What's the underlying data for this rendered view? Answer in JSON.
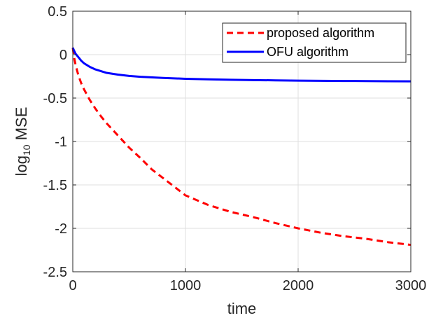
{
  "chart_data": {
    "type": "line",
    "xlabel": "time",
    "ylabel_base": "log",
    "ylabel_sub": "10",
    "ylabel_rest": " MSE",
    "xlim": [
      0,
      3000
    ],
    "ylim": [
      -2.5,
      0.5
    ],
    "xticks": [
      0,
      1000,
      2000,
      3000
    ],
    "xtick_labels": [
      "0",
      "1000",
      "2000",
      "3000"
    ],
    "yticks": [
      0.5,
      0,
      -0.5,
      -1,
      -1.5,
      -2,
      -2.5
    ],
    "ytick_labels": [
      "0.5",
      "0",
      "-0.5",
      "-1",
      "-1.5",
      "-2",
      "-2.5"
    ],
    "grid": true,
    "legend_position": "top-right",
    "series": [
      {
        "name": "proposed algorithm",
        "color": "#ff0000",
        "style": "dashed",
        "x": [
          0,
          10,
          25,
          50,
          75,
          100,
          150,
          200,
          250,
          300,
          400,
          500,
          600,
          700,
          800,
          900,
          1000,
          1200,
          1400,
          1600,
          1800,
          2000,
          2200,
          2400,
          2600,
          2800,
          3000
        ],
        "y": [
          0.08,
          -0.02,
          -0.12,
          -0.24,
          -0.33,
          -0.4,
          -0.52,
          -0.62,
          -0.71,
          -0.79,
          -0.93,
          -1.07,
          -1.19,
          -1.32,
          -1.42,
          -1.52,
          -1.62,
          -1.73,
          -1.81,
          -1.87,
          -1.94,
          -2.0,
          -2.05,
          -2.09,
          -2.12,
          -2.16,
          -2.19
        ]
      },
      {
        "name": "OFU algorithm",
        "color": "#0000ff",
        "style": "solid",
        "x": [
          0,
          10,
          25,
          50,
          75,
          100,
          150,
          200,
          250,
          300,
          400,
          500,
          600,
          800,
          1000,
          1200,
          1400,
          1600,
          1800,
          2000,
          2200,
          2400,
          2600,
          2800,
          3000
        ],
        "y": [
          0.08,
          0.05,
          0.01,
          -0.03,
          -0.07,
          -0.1,
          -0.14,
          -0.17,
          -0.19,
          -0.21,
          -0.23,
          -0.245,
          -0.255,
          -0.268,
          -0.278,
          -0.284,
          -0.289,
          -0.293,
          -0.296,
          -0.299,
          -0.301,
          -0.303,
          -0.304,
          -0.306,
          -0.307
        ]
      }
    ]
  }
}
